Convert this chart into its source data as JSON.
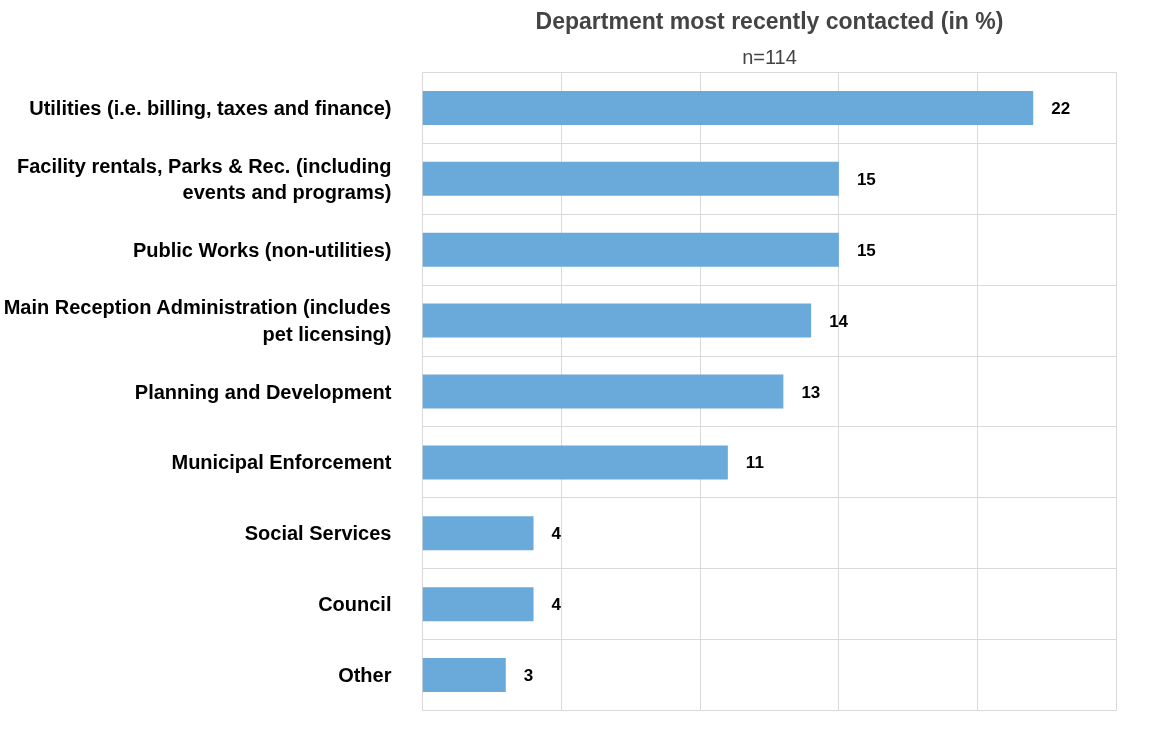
{
  "chart_data": {
    "type": "bar",
    "orientation": "horizontal",
    "title": "Department most recently contacted (in %)",
    "subtitle": "n=114",
    "categories": [
      "Utilities (i.e. billing, taxes and finance)",
      "Facility rentals, Parks & Rec. (including events and programs)",
      "Public Works (non-utilities)",
      "Main Reception Administration (includes pet licensing)",
      "Planning and Development",
      "Municipal Enforcement",
      "Social Services",
      "Council",
      "Other"
    ],
    "series": [
      {
        "color": "#6aaadb",
        "values": [
          22,
          15,
          15,
          14,
          13,
          11,
          4,
          4,
          3
        ]
      }
    ],
    "xlim": [
      0,
      25
    ],
    "xticks": [
      {
        "value": 0,
        "label": null
      },
      {
        "value": 5,
        "label": null
      },
      {
        "value": 10,
        "label": null
      },
      {
        "value": 15,
        "label": null
      },
      {
        "value": 20,
        "label": null
      },
      {
        "value": 25,
        "label": null
      }
    ],
    "tick_labels": "y",
    "grid": true,
    "data_labels": true
  }
}
